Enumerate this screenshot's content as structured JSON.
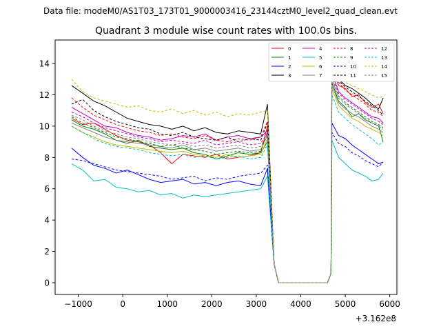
{
  "header": {
    "data_file": "Data file: modeM0/AS1T03_173T01_9000003416_23144cztM0_level2_quad_clean.evt"
  },
  "chart_data": {
    "type": "line",
    "title": "Quadrant 3 module wise count rates with 100.0s bins.",
    "xlabel": "",
    "ylabel": "",
    "x_offset_label": "+3.162e8",
    "xlim": [
      -1520,
      6160
    ],
    "ylim": [
      -0.75,
      15.5
    ],
    "xticks": [
      -1000,
      0,
      1000,
      2000,
      3000,
      4000,
      5000,
      6000
    ],
    "yticks": [
      0,
      2,
      4,
      6,
      8,
      10,
      12,
      14
    ],
    "grid": false,
    "legend_position": "top-right",
    "note": "x values are times relative to 3.162e8 s; values estimated from the figure",
    "gap_x": [
      3500,
      4600
    ],
    "series": [
      {
        "name": "0",
        "color": "#ff0000",
        "dash": false,
        "x": [
          -1150,
          -900,
          -650,
          -400,
          -150,
          100,
          350,
          600,
          850,
          1100,
          1350,
          1600,
          1850,
          2100,
          2350,
          2600,
          2850,
          3100,
          3250
        ],
        "y": [
          10.5,
          10.1,
          10.2,
          9.8,
          9.4,
          9.1,
          9.0,
          8.8,
          8.3,
          7.6,
          8.2,
          8.1,
          8.0,
          8.2,
          7.9,
          8.0,
          8.1,
          8.3,
          10.0
        ],
        "x2": [
          4700,
          4850,
          5000,
          5150,
          5300,
          5450,
          5600,
          5750,
          5850
        ],
        "y2": [
          13.6,
          12.6,
          12.4,
          11.9,
          12.0,
          11.5,
          11.2,
          11.4,
          10.8
        ]
      },
      {
        "name": "1",
        "color": "#008000",
        "dash": false,
        "x": [
          -1150,
          -900,
          -650,
          -400,
          -150,
          100,
          350,
          600,
          850,
          1100,
          1350,
          1600,
          1850,
          2100,
          2350,
          2600,
          2850,
          3100,
          3250
        ],
        "y": [
          10.4,
          10.0,
          9.8,
          9.5,
          9.1,
          8.9,
          9.1,
          8.7,
          8.6,
          8.5,
          8.6,
          8.3,
          8.2,
          7.9,
          8.1,
          8.3,
          8.2,
          8.3,
          9.0
        ],
        "x2": [
          4700,
          4850,
          5000,
          5150,
          5300,
          5450,
          5600,
          5750,
          5850
        ],
        "y2": [
          12.8,
          11.6,
          11.2,
          10.6,
          10.8,
          10.4,
          10.2,
          10.0,
          9.0
        ]
      },
      {
        "name": "2",
        "color": "#0000ff",
        "dash": false,
        "x": [
          -1150,
          -900,
          -650,
          -400,
          -150,
          100,
          350,
          600,
          850,
          1100,
          1350,
          1600,
          1850,
          2100,
          2350,
          2600,
          2850,
          3100,
          3250
        ],
        "y": [
          8.6,
          8.0,
          7.5,
          7.3,
          7.0,
          7.2,
          6.9,
          6.6,
          6.4,
          6.5,
          6.6,
          6.3,
          6.4,
          6.2,
          6.4,
          6.5,
          6.3,
          6.2,
          7.3
        ],
        "x2": [
          4700,
          4850,
          5000,
          5150,
          5300,
          5450,
          5600,
          5750,
          5850
        ],
        "y2": [
          10.2,
          9.4,
          9.2,
          8.8,
          8.5,
          8.2,
          7.9,
          7.6,
          7.7
        ]
      },
      {
        "name": "3",
        "color": "#000000",
        "dash": false,
        "x": [
          -1150,
          -900,
          -650,
          -400,
          -150,
          100,
          350,
          600,
          850,
          1100,
          1350,
          1600,
          1850,
          2100,
          2350,
          2600,
          2850,
          3100,
          3250
        ],
        "y": [
          12.6,
          12.1,
          11.6,
          11.3,
          10.9,
          10.5,
          10.3,
          10.1,
          10.0,
          9.8,
          10.0,
          9.7,
          9.9,
          9.6,
          9.5,
          9.7,
          9.6,
          9.5,
          11.4
        ],
        "x2": [
          4700,
          4850,
          5000,
          5150,
          5300,
          5450,
          5600,
          5750,
          5850
        ],
        "y2": [
          14.4,
          13.0,
          12.6,
          12.4,
          12.1,
          11.8,
          11.4,
          11.1,
          11.8
        ]
      },
      {
        "name": "4",
        "color": "#bf00bf",
        "dash": false,
        "x": [
          -1150,
          -900,
          -650,
          -400,
          -150,
          100,
          350,
          600,
          850,
          1100,
          1350,
          1600,
          1850,
          2100,
          2350,
          2600,
          2850,
          3100,
          3250
        ],
        "y": [
          11.2,
          10.8,
          10.4,
          10.0,
          9.9,
          9.6,
          9.4,
          9.3,
          9.1,
          9.2,
          9.4,
          9.3,
          9.5,
          9.1,
          9.3,
          9.4,
          9.2,
          9.3,
          9.7
        ],
        "x2": [
          4700,
          4850,
          5000,
          5150,
          5300,
          5450,
          5600,
          5750,
          5850
        ],
        "y2": [
          13.4,
          12.2,
          11.8,
          11.5,
          11.2,
          10.9,
          10.6,
          10.5,
          10.2
        ]
      },
      {
        "name": "5",
        "color": "#00bfbf",
        "dash": false,
        "x": [
          -1150,
          -900,
          -650,
          -400,
          -150,
          100,
          350,
          600,
          850,
          1100,
          1350,
          1600,
          1850,
          2100,
          2350,
          2600,
          2850,
          3100,
          3250
        ],
        "y": [
          7.6,
          7.2,
          6.5,
          6.6,
          6.1,
          6.0,
          5.8,
          5.9,
          5.6,
          5.7,
          5.4,
          5.6,
          5.5,
          5.6,
          5.7,
          5.8,
          5.9,
          6.0,
          6.8
        ],
        "x2": [
          4700,
          4850,
          5000,
          5150,
          5300,
          5450,
          5600,
          5750,
          5850
        ],
        "y2": [
          9.1,
          8.0,
          7.6,
          7.2,
          7.0,
          6.8,
          6.5,
          6.6,
          7.0
        ]
      },
      {
        "name": "6",
        "color": "#bfbf00",
        "dash": false,
        "x": [
          -1150,
          -900,
          -650,
          -400,
          -150,
          100,
          350,
          600,
          850,
          1100,
          1350,
          1600,
          1850,
          2100,
          2350,
          2600,
          2850,
          3100,
          3250
        ],
        "y": [
          10.0,
          9.6,
          9.3,
          9.0,
          8.8,
          8.7,
          8.6,
          8.5,
          8.4,
          8.3,
          8.4,
          8.2,
          8.1,
          8.0,
          8.2,
          8.0,
          8.1,
          8.2,
          9.2
        ],
        "x2": [
          4700,
          4850,
          5000,
          5150,
          5300,
          5450,
          5600,
          5750,
          5850
        ],
        "y2": [
          12.4,
          11.3,
          10.9,
          10.5,
          10.3,
          10.0,
          9.8,
          9.6,
          9.4
        ]
      },
      {
        "name": "7",
        "color": "#808080",
        "dash": false,
        "x": [
          -1150,
          -900,
          -650,
          -400,
          -150,
          100,
          350,
          600,
          850,
          1100,
          1350,
          1600,
          1850,
          2100,
          2350,
          2600,
          2850,
          3100,
          3250
        ],
        "y": [
          10.2,
          9.9,
          9.6,
          9.3,
          9.1,
          9.0,
          8.9,
          8.8,
          8.7,
          8.6,
          8.8,
          8.5,
          8.6,
          8.4,
          8.5,
          8.6,
          8.4,
          8.5,
          9.4
        ],
        "x2": [
          4700,
          4850,
          5000,
          5150,
          5300,
          5450,
          5600,
          5750,
          5850
        ],
        "y2": [
          12.6,
          11.5,
          11.1,
          10.8,
          10.6,
          10.3,
          10.0,
          9.8,
          9.6
        ]
      },
      {
        "name": "8",
        "color": "#ff0000",
        "dash": true,
        "x": [
          -1150,
          -900,
          -650,
          -400,
          -150,
          100,
          350,
          600,
          850,
          1100,
          1350,
          1600,
          1850,
          2100,
          2350,
          2600,
          2850,
          3100,
          3250
        ],
        "y": [
          11.8,
          11.2,
          10.7,
          10.4,
          10.1,
          9.9,
          9.7,
          9.6,
          9.4,
          9.5,
          9.3,
          9.2,
          9.4,
          9.1,
          9.0,
          9.2,
          9.1,
          9.3,
          10.3
        ],
        "x2": [
          4700,
          4850,
          5000,
          5150,
          5300,
          5450,
          5600,
          5750,
          5850
        ],
        "y2": [
          13.9,
          12.8,
          12.3,
          12.0,
          11.7,
          11.4,
          11.0,
          10.9,
          10.6
        ]
      },
      {
        "name": "9",
        "color": "#008000",
        "dash": true,
        "x": [
          -1150,
          -900,
          -650,
          -400,
          -150,
          100,
          350,
          600,
          850,
          1100,
          1350,
          1600,
          1850,
          2100,
          2350,
          2600,
          2850,
          3100,
          3250
        ],
        "y": [
          10.6,
          10.2,
          9.9,
          9.6,
          9.3,
          9.2,
          9.0,
          8.9,
          8.7,
          8.8,
          8.6,
          8.5,
          8.4,
          8.2,
          8.3,
          8.4,
          8.3,
          8.4,
          9.6
        ],
        "x2": [
          4700,
          4850,
          5000,
          5150,
          5300,
          5450,
          5600,
          5750,
          5850
        ],
        "y2": [
          13.1,
          11.9,
          11.5,
          11.2,
          10.9,
          10.6,
          10.3,
          10.1,
          9.9
        ]
      },
      {
        "name": "10",
        "color": "#0000ff",
        "dash": true,
        "x": [
          -1150,
          -900,
          -650,
          -400,
          -150,
          100,
          350,
          600,
          850,
          1100,
          1350,
          1600,
          1850,
          2100,
          2350,
          2600,
          2850,
          3100,
          3250
        ],
        "y": [
          7.9,
          7.8,
          7.6,
          7.4,
          7.2,
          7.1,
          7.0,
          6.9,
          6.8,
          6.6,
          6.7,
          6.8,
          6.5,
          6.7,
          6.6,
          6.8,
          6.9,
          7.0,
          7.5
        ],
        "x2": [
          4700,
          4850,
          5000,
          5150,
          5300,
          5450,
          5600,
          5750,
          5850
        ],
        "y2": [
          9.6,
          8.9,
          8.7,
          8.3,
          8.1,
          7.8,
          7.6,
          7.4,
          7.7
        ]
      },
      {
        "name": "11",
        "color": "#000000",
        "dash": true,
        "x": [
          -1150,
          -900,
          -650,
          -400,
          -150,
          100,
          350,
          600,
          850,
          1100,
          1350,
          1600,
          1850,
          2100,
          2350,
          2600,
          2850,
          3100,
          3250
        ],
        "y": [
          11.4,
          11.7,
          11.0,
          10.6,
          10.3,
          10.1,
          9.9,
          9.8,
          9.5,
          9.4,
          9.6,
          9.3,
          9.2,
          9.1,
          9.3,
          9.0,
          9.2,
          9.1,
          10.2
        ],
        "x2": [
          4700,
          4850,
          5000,
          5150,
          5300,
          5450,
          5600,
          5750,
          5850
        ],
        "y2": [
          14.1,
          12.9,
          12.5,
          12.2,
          11.9,
          11.6,
          11.3,
          11.0,
          10.7
        ]
      },
      {
        "name": "12",
        "color": "#bf00bf",
        "dash": true,
        "x": [
          -1150,
          -900,
          -650,
          -400,
          -150,
          100,
          350,
          600,
          850,
          1100,
          1350,
          1600,
          1850,
          2100,
          2350,
          2600,
          2850,
          3100,
          3250
        ],
        "y": [
          10.9,
          10.6,
          10.2,
          9.9,
          9.7,
          9.5,
          9.3,
          9.2,
          9.0,
          9.1,
          9.0,
          8.9,
          9.1,
          8.8,
          8.9,
          9.0,
          8.8,
          8.9,
          9.6
        ],
        "x2": [
          4700,
          4850,
          5000,
          5150,
          5300,
          5450,
          5600,
          5750,
          5850
        ],
        "y2": [
          13.3,
          12.1,
          11.7,
          11.4,
          11.1,
          10.8,
          10.5,
          10.3,
          10.1
        ]
      },
      {
        "name": "13",
        "color": "#00bfbf",
        "dash": true,
        "x": [
          -1150,
          -900,
          -650,
          -400,
          -150,
          100,
          350,
          600,
          850,
          1100,
          1350,
          1600,
          1850,
          2100,
          2350,
          2600,
          2850,
          3100,
          3250
        ],
        "y": [
          10.0,
          9.6,
          9.2,
          8.9,
          8.7,
          8.6,
          8.5,
          8.3,
          8.2,
          8.1,
          8.2,
          8.0,
          8.1,
          7.9,
          8.0,
          8.1,
          7.9,
          8.0,
          8.8
        ],
        "x2": [
          4700,
          4850,
          5000,
          5150,
          5300,
          5450,
          5600,
          5750,
          5850
        ],
        "y2": [
          12.0,
          10.9,
          10.5,
          10.1,
          9.8,
          9.5,
          9.2,
          8.8,
          9.0
        ]
      },
      {
        "name": "14",
        "color": "#bfbf00",
        "dash": true,
        "x": [
          -1150,
          -900,
          -650,
          -400,
          -150,
          100,
          350,
          600,
          850,
          1100,
          1350,
          1600,
          1850,
          2100,
          2350,
          2600,
          2850,
          3100,
          3250
        ],
        "y": [
          13.0,
          12.2,
          11.8,
          11.6,
          11.4,
          11.2,
          11.3,
          11.0,
          10.9,
          11.1,
          10.8,
          11.0,
          10.7,
          10.9,
          10.6,
          10.8,
          10.7,
          10.9,
          11.0
        ],
        "x2": [
          4700,
          4850,
          5000,
          5150,
          5300,
          5450,
          5600,
          5750,
          5850
        ],
        "y2": [
          14.6,
          13.2,
          12.8,
          12.6,
          12.4,
          12.2,
          12.0,
          11.8,
          11.9
        ]
      },
      {
        "name": "15",
        "color": "#808080",
        "dash": true,
        "x": [
          -1150,
          -900,
          -650,
          -400,
          -150,
          100,
          350,
          600,
          850,
          1100,
          1350,
          1600,
          1850,
          2100,
          2350,
          2600,
          2850,
          3100,
          3250
        ],
        "y": [
          10.7,
          10.4,
          10.0,
          9.7,
          9.5,
          9.3,
          9.2,
          9.0,
          8.9,
          8.8,
          8.9,
          8.7,
          8.8,
          8.6,
          8.7,
          8.8,
          8.6,
          8.7,
          9.5
        ],
        "x2": [
          4700,
          4850,
          5000,
          5150,
          5300,
          5450,
          5600,
          5750,
          5850
        ],
        "y2": [
          13.0,
          11.8,
          11.4,
          11.1,
          10.8,
          10.5,
          10.2,
          10.0,
          9.8
        ]
      }
    ]
  }
}
